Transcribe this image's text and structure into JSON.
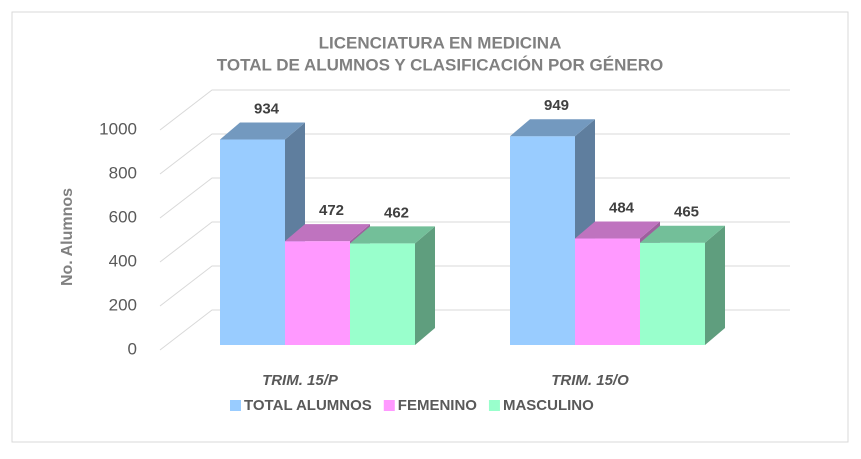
{
  "chart_data": {
    "type": "bar3d",
    "title": "LICENCIATURA EN MEDICINA",
    "subtitle": "TOTAL DE ALUMNOS Y CLASIFICACIÓN POR GÉNERO",
    "y_label": "No. Alumnos",
    "categories": [
      "TRIM. 15/P",
      "TRIM. 15/O"
    ],
    "series": [
      {
        "name": "TOTAL ALUMNOS",
        "color": "#99ccff",
        "values": [
          934,
          949
        ]
      },
      {
        "name": "FEMENINO",
        "color": "#ff99ff",
        "values": [
          472,
          484
        ]
      },
      {
        "name": "MASCULINO",
        "color": "#99ffcc",
        "values": [
          462,
          465
        ]
      }
    ],
    "ylim": [
      0,
      1000
    ],
    "yticks": [
      0,
      200,
      400,
      600,
      800,
      1000
    ],
    "grid": true,
    "legend": "bottom"
  }
}
